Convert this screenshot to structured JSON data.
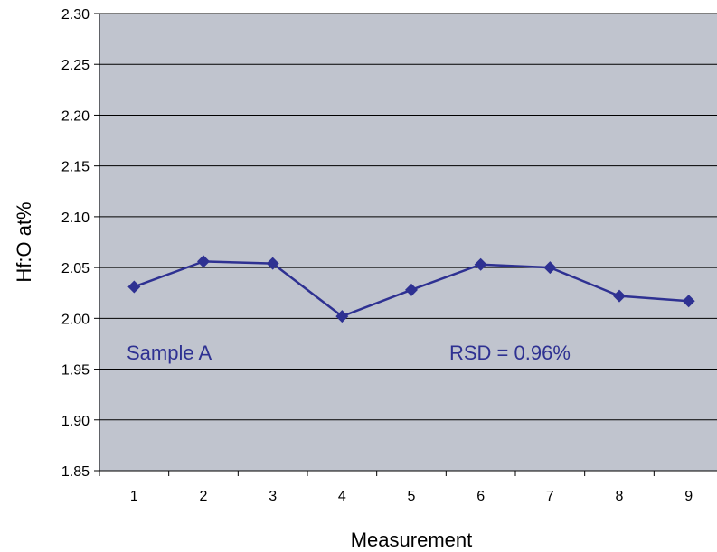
{
  "chart_data": {
    "type": "line",
    "title": "",
    "xlabel": "Measurement",
    "ylabel": "Hf:O at%",
    "x": [
      1,
      2,
      3,
      4,
      5,
      6,
      7,
      8,
      9
    ],
    "categories": [
      "1",
      "2",
      "3",
      "4",
      "5",
      "6",
      "7",
      "8",
      "9"
    ],
    "ylim": [
      1.85,
      2.3
    ],
    "yticks": [
      "1.85",
      "1.90",
      "1.95",
      "2.00",
      "2.05",
      "2.10",
      "2.15",
      "2.20",
      "2.25",
      "2.30"
    ],
    "grid": true,
    "legend": "none",
    "series": [
      {
        "values": [
          2.031,
          2.056,
          2.054,
          2.002,
          2.028,
          2.053,
          2.05,
          2.022,
          2.017
        ]
      }
    ],
    "annotations": {
      "sample": "Sample A",
      "rsd": "RSD = 0.96%"
    },
    "colors": {
      "plot_background": "#c0c4ce",
      "series": "#2e3192",
      "gridline": "#000000"
    }
  }
}
